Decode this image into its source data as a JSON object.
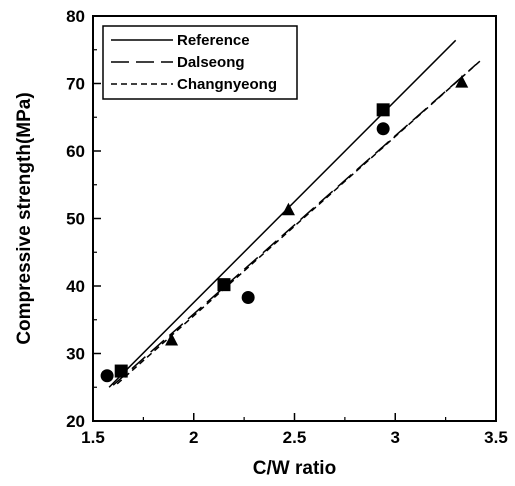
{
  "chart_data": {
    "type": "scatter",
    "xlabel": "C/W ratio",
    "ylabel": "Compressive strength(MPa)",
    "xlim": [
      1.5,
      3.5
    ],
    "ylim": [
      20,
      80
    ],
    "x_ticks": [
      1.5,
      2,
      2.5,
      3,
      3.5
    ],
    "x_tick_labels": [
      "1.5",
      "2",
      "2.5",
      "3",
      "3.5"
    ],
    "y_ticks": [
      20,
      30,
      40,
      50,
      60,
      70,
      80
    ],
    "y_tick_labels": [
      "20",
      "30",
      "40",
      "50",
      "60",
      "70",
      "80"
    ],
    "grid": false,
    "legend_position": "top-left",
    "series": [
      {
        "marker": "circle",
        "x": [
          1.57,
          2.27,
          2.94
        ],
        "y": [
          26.7,
          38.3,
          63.3
        ]
      },
      {
        "marker": "square",
        "x": [
          1.64,
          2.15,
          2.94
        ],
        "y": [
          27.4,
          40.2,
          66.1
        ]
      },
      {
        "marker": "triangle",
        "x": [
          1.89,
          2.47,
          3.33
        ],
        "y": [
          32.0,
          51.3,
          70.2
        ]
      }
    ],
    "fit_lines": [
      {
        "name": "Reference",
        "style": "solid",
        "x": [
          1.58,
          3.3
        ],
        "y": [
          25.0,
          76.4
        ]
      },
      {
        "name": "Dalseong",
        "style": "long-dash",
        "x": [
          1.6,
          3.4
        ],
        "y": [
          25.3,
          72.8
        ]
      },
      {
        "name": "Changnyeong",
        "style": "short-dash",
        "x": [
          1.62,
          3.42
        ],
        "y": [
          25.5,
          73.3
        ]
      }
    ]
  }
}
